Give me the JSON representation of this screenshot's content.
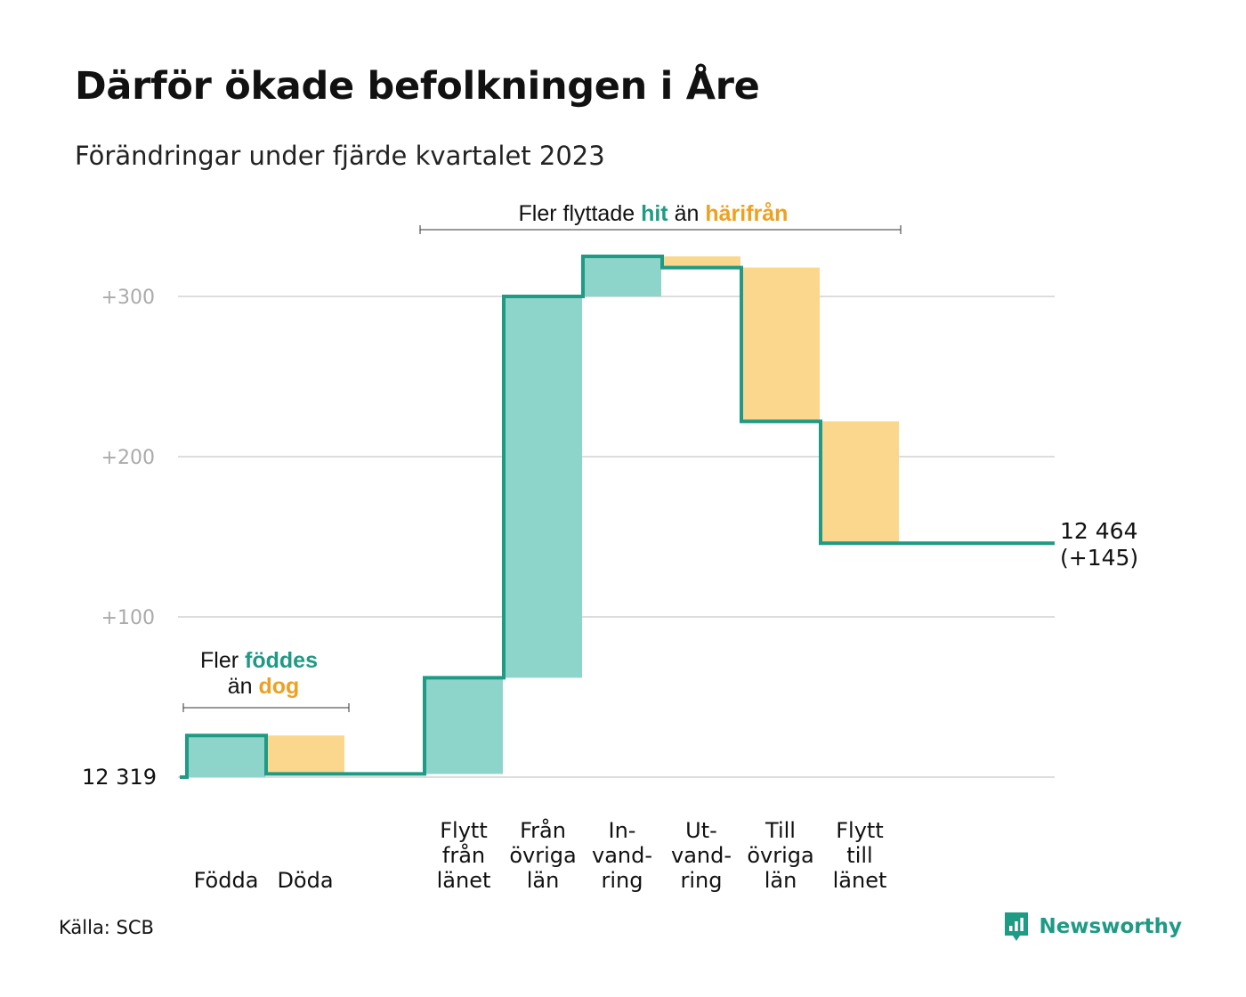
{
  "title": "Därför ökade befolkningen i Åre",
  "subtitle": "Förändringar under fjärde kvartalet 2023",
  "source": "Källa: SCB",
  "brand": {
    "name": "Newsworthy",
    "icon": "newsworthy-logo-icon"
  },
  "colors": {
    "increase": "#8dd4cb",
    "decrease": "#fbd68d",
    "line": "#1f9a85",
    "accent_orange": "#f0a020",
    "grid": "#dddddd"
  },
  "annotations": {
    "births": {
      "part1": "Fler",
      "highlight1": "föddes",
      "part2": "än",
      "highlight2": "dog"
    },
    "moves": {
      "part1": "Fler flyttade",
      "highlight1": "hit",
      "part2": "än",
      "highlight2": "härifrån"
    }
  },
  "chart_data": {
    "type": "waterfall",
    "start_value": 12319,
    "start_label": "12  319",
    "end_value": 12464,
    "end_label": "12 464",
    "end_change_label": "(+145)",
    "yaxis": {
      "ticks": [
        100,
        200,
        300
      ],
      "tick_labels": [
        "+100",
        "+200",
        "+300"
      ],
      "range": [
        0,
        330
      ],
      "grid": true
    },
    "steps": [
      {
        "label_lines": [
          "Födda"
        ],
        "change": 26,
        "kind": "increase"
      },
      {
        "label_lines": [
          "Döda"
        ],
        "change": -24,
        "kind": "decrease"
      },
      {
        "label_lines": [],
        "change": 0,
        "kind": "none"
      },
      {
        "label_lines": [
          "Flytt",
          "från",
          "länet"
        ],
        "change": 60,
        "kind": "increase"
      },
      {
        "label_lines": [
          "Från",
          "övriga",
          "län"
        ],
        "change": 238,
        "kind": "increase"
      },
      {
        "label_lines": [
          "In-",
          "vand-",
          "ring"
        ],
        "change": 25,
        "kind": "increase"
      },
      {
        "label_lines": [
          "Ut-",
          "vand-",
          "ring"
        ],
        "change": -7,
        "kind": "decrease"
      },
      {
        "label_lines": [
          "Till",
          "övriga",
          "län"
        ],
        "change": -96,
        "kind": "decrease"
      },
      {
        "label_lines": [
          "Flytt",
          "till",
          "länet"
        ],
        "change": -76,
        "kind": "decrease"
      }
    ]
  }
}
